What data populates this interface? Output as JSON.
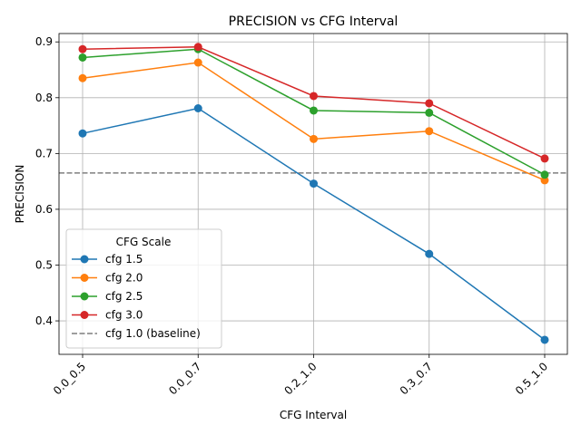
{
  "chart_data": {
    "type": "line",
    "title": "PRECISION vs CFG Interval",
    "xlabel": "CFG Interval",
    "ylabel": "PRECISION",
    "categories": [
      "0.0_0.5",
      "0.0_0.7",
      "0.2_1.0",
      "0.3_0.7",
      "0.5_1.0"
    ],
    "ylim": [
      0.34,
      0.915
    ],
    "yticks": [
      0.4,
      0.5,
      0.6,
      0.7,
      0.8,
      0.9
    ],
    "ytick_labels": [
      "0.4",
      "0.5",
      "0.6",
      "0.7",
      "0.8",
      "0.9"
    ],
    "grid": true,
    "legend_title": "CFG Scale",
    "legend_position": "lower-left",
    "series": [
      {
        "name": "cfg 1.5",
        "color": "#1f77b4",
        "values": [
          0.736,
          0.781,
          0.646,
          0.52,
          0.366
        ]
      },
      {
        "name": "cfg 2.0",
        "color": "#ff7f0e",
        "values": [
          0.835,
          0.863,
          0.726,
          0.74,
          0.652
        ]
      },
      {
        "name": "cfg 2.5",
        "color": "#2ca02c",
        "values": [
          0.872,
          0.887,
          0.777,
          0.773,
          0.662
        ]
      },
      {
        "name": "cfg 3.0",
        "color": "#d62728",
        "values": [
          0.887,
          0.891,
          0.803,
          0.79,
          0.691
        ]
      }
    ],
    "baseline": {
      "name": "cfg 1.0 (baseline)",
      "value": 0.665,
      "color": "#7f7f7f",
      "style": "dashed"
    }
  }
}
